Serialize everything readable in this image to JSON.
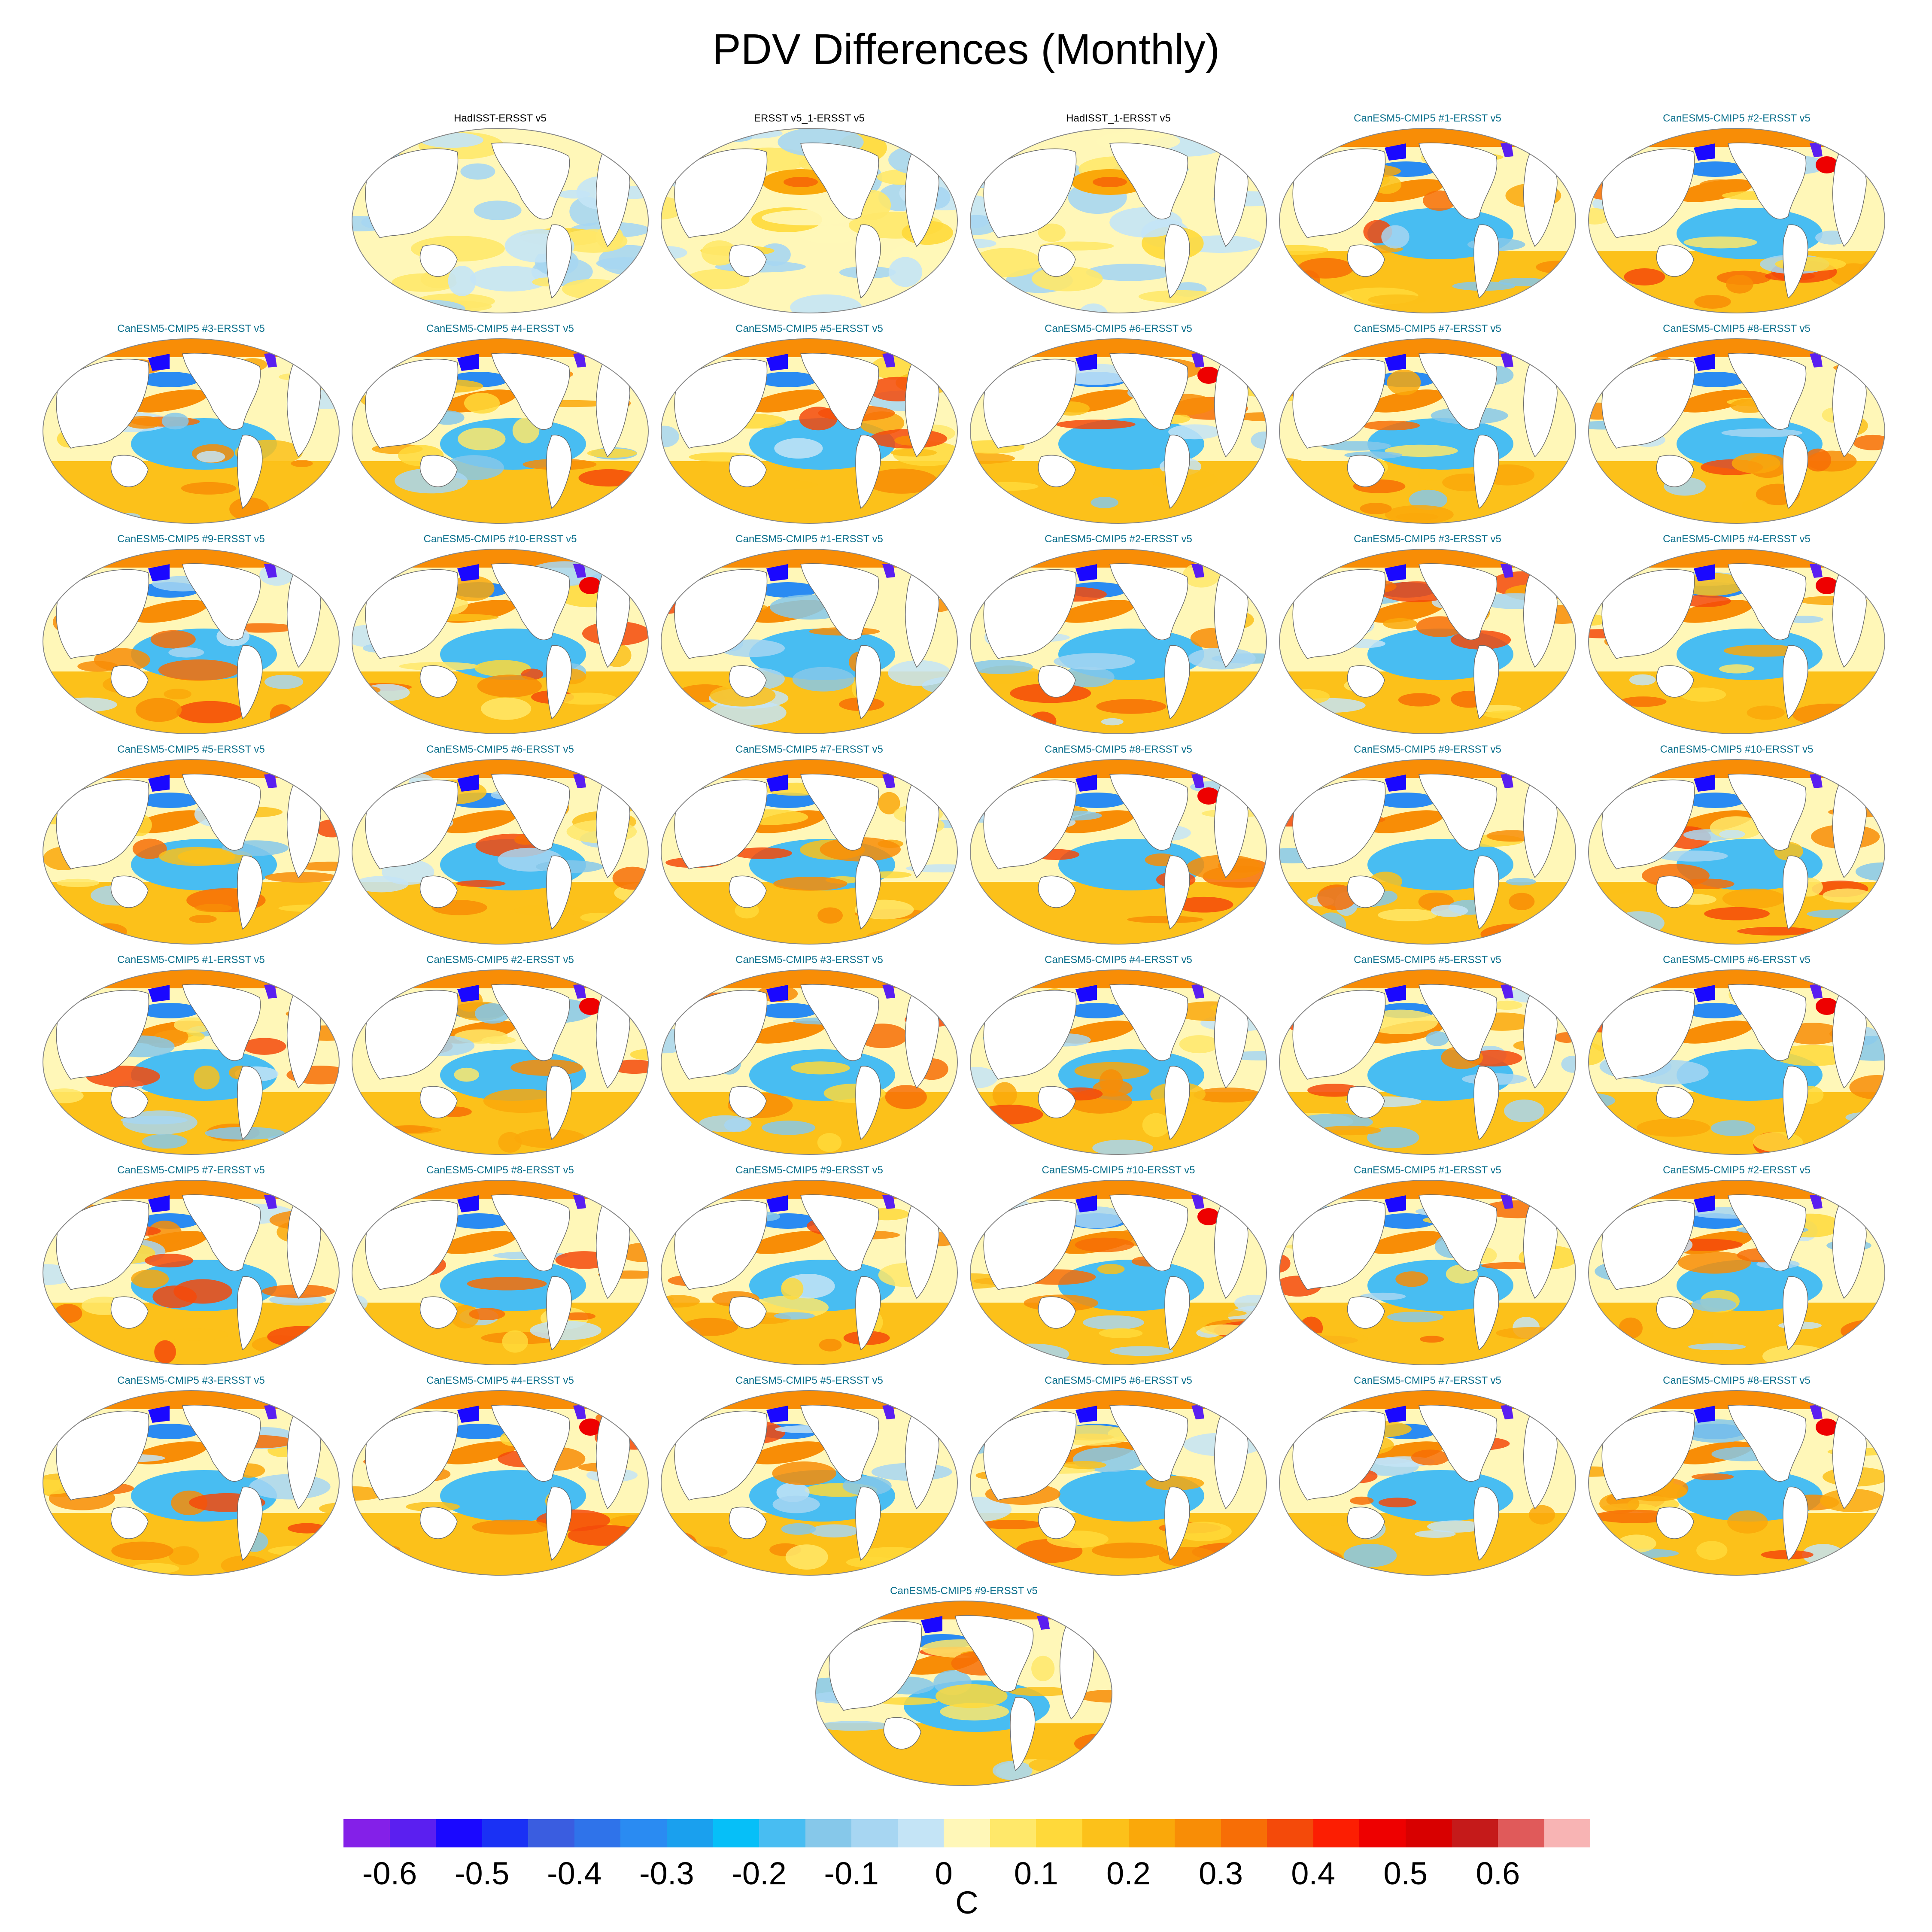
{
  "title": "PDV Differences (Monthly)",
  "colorbar": {
    "unit": "C",
    "tick_labels": [
      "-0.6",
      "-0.5",
      "-0.4",
      "-0.3",
      "-0.2",
      "-0.1",
      "0",
      "0.1",
      "0.2",
      "0.3",
      "0.4",
      "0.5",
      "0.6"
    ],
    "colors": [
      "#8420e8",
      "#5b1ff0",
      "#1a08ff",
      "#1a31f5",
      "#3a5de0",
      "#2f73ea",
      "#2a8bf2",
      "#1aa0ee",
      "#06bff8",
      "#48bdf2",
      "#86c8ea",
      "#a7d6f2",
      "#c4e4f6",
      "#fff7b8",
      "#ffe86a",
      "#ffd93a",
      "#fcc11a",
      "#faa80a",
      "#f88d06",
      "#f76e06",
      "#f44a0a",
      "#fc1e02",
      "#ee0000",
      "#d80000",
      "#c51a1a",
      "#e05a5a",
      "#f8b4b4"
    ]
  },
  "panels": [
    {
      "title": "HadISST-ERSST v5",
      "observational": true
    },
    {
      "title": "ERSST v5_1-ERSST v5",
      "observational": true
    },
    {
      "title": "HadISST_1-ERSST v5",
      "observational": true
    },
    {
      "title": "CanESM5-CMIP5 #1-ERSST v5",
      "observational": false
    },
    {
      "title": "CanESM5-CMIP5 #2-ERSST v5",
      "observational": false
    },
    {
      "title": "CanESM5-CMIP5 #3-ERSST v5",
      "observational": false
    },
    {
      "title": "CanESM5-CMIP5 #4-ERSST v5",
      "observational": false
    },
    {
      "title": "CanESM5-CMIP5 #5-ERSST v5",
      "observational": false
    },
    {
      "title": "CanESM5-CMIP5 #6-ERSST v5",
      "observational": false
    },
    {
      "title": "CanESM5-CMIP5 #7-ERSST v5",
      "observational": false
    },
    {
      "title": "CanESM5-CMIP5 #8-ERSST v5",
      "observational": false
    },
    {
      "title": "CanESM5-CMIP5 #9-ERSST v5",
      "observational": false
    },
    {
      "title": "CanESM5-CMIP5 #10-ERSST v5",
      "observational": false
    },
    {
      "title": "CanESM5-CMIP5 #1-ERSST v5",
      "observational": false
    },
    {
      "title": "CanESM5-CMIP5 #2-ERSST v5",
      "observational": false
    },
    {
      "title": "CanESM5-CMIP5 #3-ERSST v5",
      "observational": false
    },
    {
      "title": "CanESM5-CMIP5 #4-ERSST v5",
      "observational": false
    },
    {
      "title": "CanESM5-CMIP5 #5-ERSST v5",
      "observational": false
    },
    {
      "title": "CanESM5-CMIP5 #6-ERSST v5",
      "observational": false
    },
    {
      "title": "CanESM5-CMIP5 #7-ERSST v5",
      "observational": false
    },
    {
      "title": "CanESM5-CMIP5 #8-ERSST v5",
      "observational": false
    },
    {
      "title": "CanESM5-CMIP5 #9-ERSST v5",
      "observational": false
    },
    {
      "title": "CanESM5-CMIP5 #10-ERSST v5",
      "observational": false
    },
    {
      "title": "CanESM5-CMIP5 #1-ERSST v5",
      "observational": false
    },
    {
      "title": "CanESM5-CMIP5 #2-ERSST v5",
      "observational": false
    },
    {
      "title": "CanESM5-CMIP5 #3-ERSST v5",
      "observational": false
    },
    {
      "title": "CanESM5-CMIP5 #4-ERSST v5",
      "observational": false
    },
    {
      "title": "CanESM5-CMIP5 #5-ERSST v5",
      "observational": false
    },
    {
      "title": "CanESM5-CMIP5 #6-ERSST v5",
      "observational": false
    },
    {
      "title": "CanESM5-CMIP5 #7-ERSST v5",
      "observational": false
    },
    {
      "title": "CanESM5-CMIP5 #8-ERSST v5",
      "observational": false
    },
    {
      "title": "CanESM5-CMIP5 #9-ERSST v5",
      "observational": false
    },
    {
      "title": "CanESM5-CMIP5 #10-ERSST v5",
      "observational": false
    },
    {
      "title": "CanESM5-CMIP5 #1-ERSST v5",
      "observational": false
    },
    {
      "title": "CanESM5-CMIP5 #2-ERSST v5",
      "observational": false
    },
    {
      "title": "CanESM5-CMIP5 #3-ERSST v5",
      "observational": false
    },
    {
      "title": "CanESM5-CMIP5 #4-ERSST v5",
      "observational": false
    },
    {
      "title": "CanESM5-CMIP5 #5-ERSST v5",
      "observational": false
    },
    {
      "title": "CanESM5-CMIP5 #6-ERSST v5",
      "observational": false
    },
    {
      "title": "CanESM5-CMIP5 #7-ERSST v5",
      "observational": false
    },
    {
      "title": "CanESM5-CMIP5 #8-ERSST v5",
      "observational": false
    },
    {
      "title": "CanESM5-CMIP5 #9-ERSST v5",
      "observational": false
    }
  ]
}
